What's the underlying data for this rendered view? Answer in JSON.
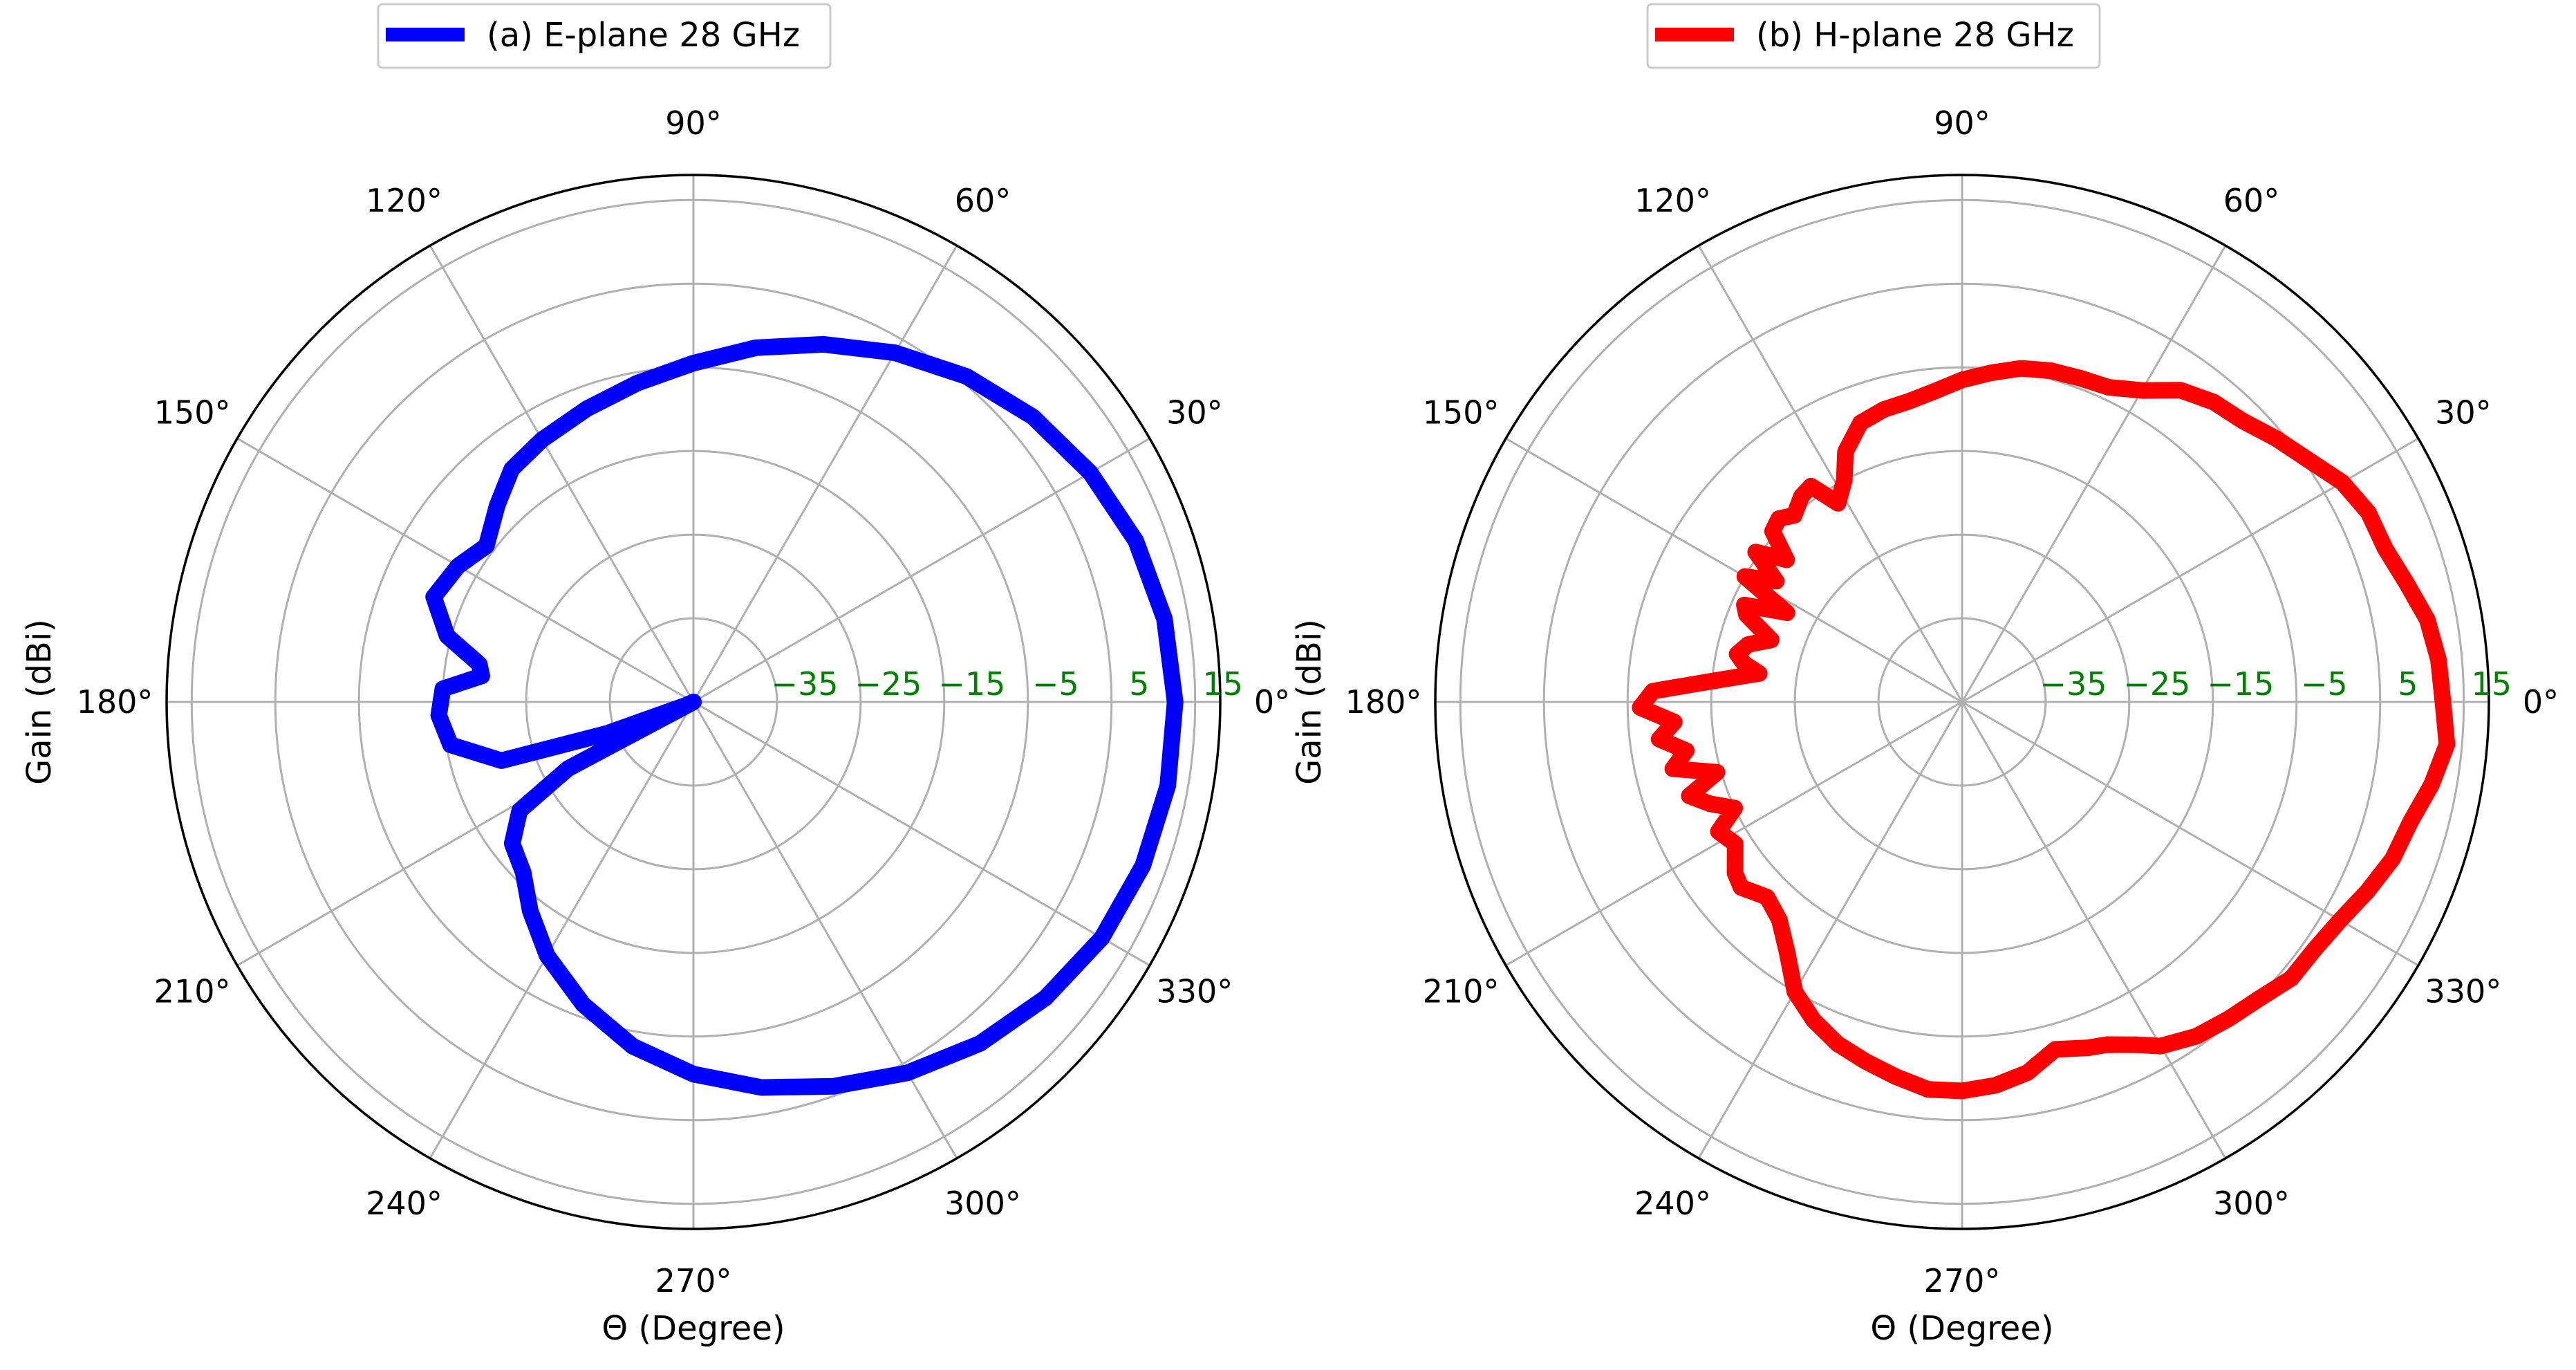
{
  "chart_data": [
    {
      "type": "polar-line",
      "legend_label": "(a) E-plane 28 GHz",
      "legend_position": "top-left",
      "color": "#0000ff",
      "ylabel": "Gain (dBi)",
      "xlabel": "Θ (Degree)",
      "theta_tick_labels": [
        "0°",
        "30°",
        "60°",
        "90°",
        "120°",
        "150°",
        "180°",
        "210°",
        "240°",
        "270°",
        "300°",
        "330°"
      ],
      "r_tick_labels": [
        "−35",
        "−25",
        "−15",
        "−5",
        "5",
        "15"
      ],
      "r_ticks": [
        -35,
        -25,
        -15,
        -5,
        5,
        15
      ],
      "rlim": [
        -45,
        18
      ],
      "grid": true,
      "points": [
        [
          0,
          12.6
        ],
        [
          10,
          12.2
        ],
        [
          20,
          11.3
        ],
        [
          30,
          9.8
        ],
        [
          40,
          8
        ],
        [
          50,
          5.8
        ],
        [
          60,
          3.2
        ],
        [
          70,
          0.5
        ],
        [
          80,
          -2
        ],
        [
          90,
          -4.5
        ],
        [
          100,
          -6.3
        ],
        [
          110,
          -7.7
        ],
        [
          120,
          -8.8
        ],
        [
          128,
          -9.7
        ],
        [
          135,
          -11.8
        ],
        [
          143,
          -14
        ],
        [
          150,
          -12.5
        ],
        [
          158,
          -11.5
        ],
        [
          165,
          -14.5
        ],
        [
          170,
          -19
        ],
        [
          173,
          -19.5
        ],
        [
          177,
          -15
        ],
        [
          183,
          -14.5
        ],
        [
          190,
          -15.5
        ],
        [
          197,
          -21
        ],
        [
          200,
          -34
        ],
        [
          204,
          -44
        ],
        [
          205,
          -45
        ],
        [
          208,
          -28
        ],
        [
          212,
          -20.5
        ],
        [
          218,
          -17.5
        ],
        [
          225,
          -16.2
        ],
        [
          232,
          -13.3
        ],
        [
          240,
          -10
        ],
        [
          250,
          -6.5
        ],
        [
          260,
          -3.2
        ],
        [
          270,
          -0.5
        ],
        [
          280,
          1.8
        ],
        [
          290,
          3.9
        ],
        [
          300,
          6.2
        ],
        [
          310,
          8.3
        ],
        [
          320,
          10
        ],
        [
          330,
          11.4
        ],
        [
          340,
          12.2
        ],
        [
          350,
          12.6
        ],
        [
          360,
          12.6
        ]
      ]
    },
    {
      "type": "polar-line",
      "legend_label": "(b) H-plane 28 GHz",
      "legend_position": "top-left",
      "color": "#ff0000",
      "ylabel": "Gain (dBi)",
      "xlabel": "Θ (Degree)",
      "theta_tick_labels": [
        "0°",
        "30°",
        "60°",
        "90°",
        "120°",
        "150°",
        "180°",
        "210°",
        "240°",
        "270°",
        "300°",
        "330°"
      ],
      "r_tick_labels": [
        "−35",
        "−25",
        "−15",
        "−5",
        "5",
        "15"
      ],
      "r_ticks": [
        -35,
        -25,
        -15,
        -5,
        5,
        15
      ],
      "rlim": [
        -45,
        18
      ],
      "grid": true,
      "points": [
        [
          0,
          12.5
        ],
        [
          5,
          12.2
        ],
        [
          10,
          11.5
        ],
        [
          15,
          10
        ],
        [
          20,
          8.8
        ],
        [
          25,
          8.6
        ],
        [
          30,
          7.5
        ],
        [
          35,
          5.5
        ],
        [
          40,
          4
        ],
        [
          45,
          2.5
        ],
        [
          50,
          1.8
        ],
        [
          55,
          0.5
        ],
        [
          60,
          -2
        ],
        [
          65,
          -3.5
        ],
        [
          70,
          -3.8
        ],
        [
          75,
          -4
        ],
        [
          80,
          -4.5
        ],
        [
          85,
          -5.5
        ],
        [
          90,
          -6.5
        ],
        [
          95,
          -7.7
        ],
        [
          100,
          -8.5
        ],
        [
          105,
          -8.8
        ],
        [
          110,
          -9.5
        ],
        [
          115,
          -12
        ],
        [
          118,
          -15
        ],
        [
          122,
          -17
        ],
        [
          125,
          -13.5
        ],
        [
          128,
          -13.8
        ],
        [
          132,
          -15
        ],
        [
          135,
          -14
        ],
        [
          138,
          -14.5
        ],
        [
          141,
          -18
        ],
        [
          144,
          -14.5
        ],
        [
          147,
          -18.5
        ],
        [
          150,
          -15
        ],
        [
          153,
          -21.5
        ],
        [
          156,
          -16.5
        ],
        [
          158,
          -17.2
        ],
        [
          162,
          -21
        ],
        [
          165,
          -18.5
        ],
        [
          168,
          -17.5
        ],
        [
          170,
          -18.5
        ],
        [
          172,
          -20.5
        ],
        [
          175,
          -15.5
        ],
        [
          178,
          -8
        ],
        [
          181,
          -6.5
        ],
        [
          184,
          -10.5
        ],
        [
          187,
          -8.5
        ],
        [
          190,
          -11.5
        ],
        [
          193,
          -9.5
        ],
        [
          196,
          -14.5
        ],
        [
          199,
          -10.5
        ],
        [
          202,
          -12.5
        ],
        [
          205,
          -15
        ],
        [
          208,
          -12
        ],
        [
          212,
          -13
        ],
        [
          217,
          -11
        ],
        [
          220,
          -10.5
        ],
        [
          225,
          -12
        ],
        [
          230,
          -11
        ],
        [
          235,
          -8.5
        ],
        [
          240,
          -5
        ],
        [
          245,
          -3
        ],
        [
          250,
          -1.5
        ],
        [
          255,
          -0.5
        ],
        [
          260,
          0.5
        ],
        [
          265,
          1.5
        ],
        [
          270,
          1.5
        ],
        [
          275,
          1
        ],
        [
          280,
          0
        ],
        [
          285,
          -2
        ],
        [
          290,
          -1
        ],
        [
          293,
          -0.5
        ],
        [
          297,
          1
        ],
        [
          300,
          2.5
        ],
        [
          305,
          3.8
        ],
        [
          310,
          4.5
        ],
        [
          315,
          5.2
        ],
        [
          320,
          6.4
        ],
        [
          325,
          6.5
        ],
        [
          330,
          7.2
        ],
        [
          335,
          8.5
        ],
        [
          340,
          9.8
        ],
        [
          345,
          10.5
        ],
        [
          350,
          12
        ],
        [
          355,
          13.2
        ],
        [
          360,
          12.5
        ]
      ]
    }
  ]
}
